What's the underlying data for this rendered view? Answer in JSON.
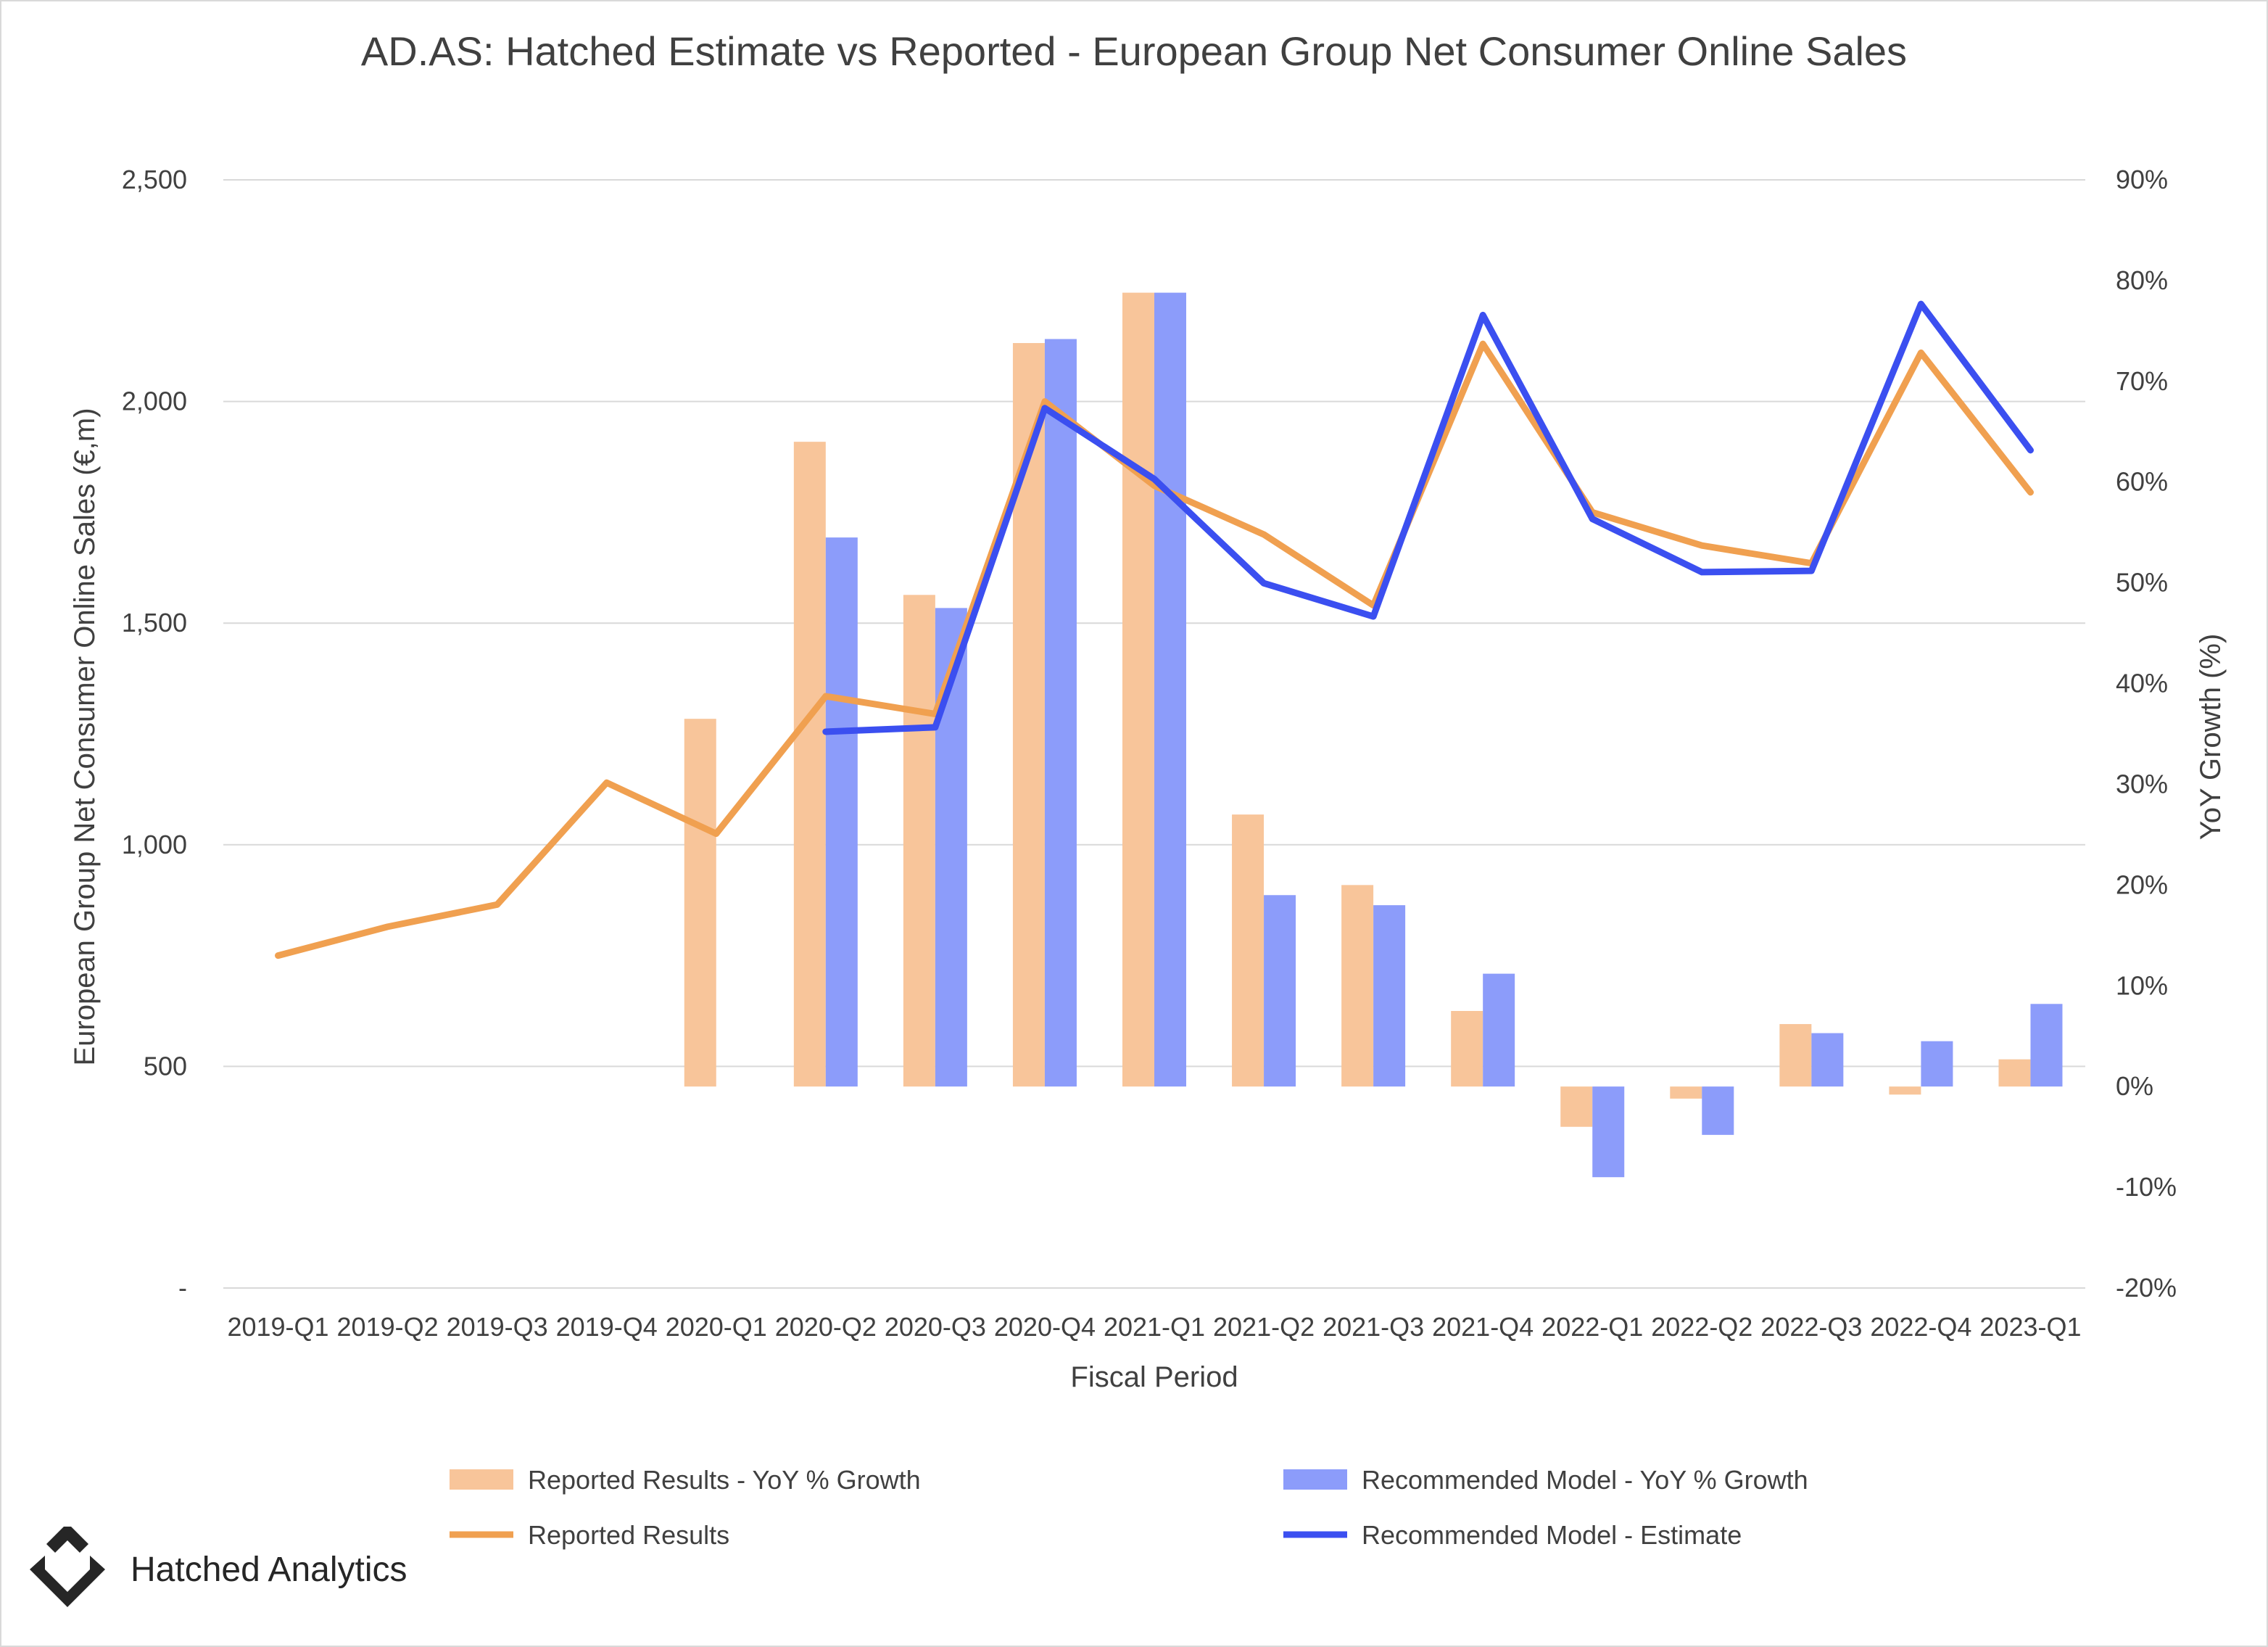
{
  "chart_data": {
    "type": "bar",
    "title": "AD.AS: Hatched Estimate vs Reported - European Group Net Consumer Online Sales",
    "xlabel": "Fiscal Period",
    "ylabel": "European Group Net Consumer Online Sales (€,m)",
    "y2label": "YoY Growth (%)",
    "categories": [
      "2019-Q1",
      "2019-Q2",
      "2019-Q3",
      "2019-Q4",
      "2020-Q1",
      "2020-Q2",
      "2020-Q3",
      "2020-Q4",
      "2021-Q1",
      "2021-Q2",
      "2021-Q3",
      "2021-Q4",
      "2022-Q1",
      "2022-Q2",
      "2022-Q3",
      "2022-Q4",
      "2023-Q1"
    ],
    "ylim": [
      0,
      2500
    ],
    "y_ticks": [
      0,
      500,
      1000,
      1500,
      2000,
      2500
    ],
    "y_tick_labels": [
      "-",
      "500",
      "1,000",
      "1,500",
      "2,000",
      "2,500"
    ],
    "y2lim": [
      -20,
      90
    ],
    "y2_ticks": [
      -20,
      -10,
      0,
      10,
      20,
      30,
      40,
      50,
      60,
      70,
      80,
      90
    ],
    "y2_tick_labels": [
      "-20%",
      "-10%",
      "0%",
      "10%",
      "20%",
      "30%",
      "40%",
      "50%",
      "60%",
      "70%",
      "80%",
      "90%"
    ],
    "grid": true,
    "legend_position": "bottom",
    "series": [
      {
        "name": "Reported Results - YoY % Growth",
        "kind": "bar",
        "axis": "right",
        "color": "#f8c59a",
        "values": [
          null,
          null,
          null,
          null,
          36.5,
          64,
          48.8,
          73.8,
          78.8,
          27,
          20,
          7.5,
          -4,
          -1.2,
          6.2,
          -0.8,
          2.7
        ]
      },
      {
        "name": "Recommended Model - YoY % Growth",
        "kind": "bar",
        "axis": "right",
        "color": "#8c9cfa",
        "values": [
          null,
          null,
          null,
          null,
          null,
          54.5,
          47.5,
          74.2,
          78.8,
          19,
          18,
          11.2,
          -9,
          -4.8,
          5.3,
          4.5,
          8.2
        ]
      },
      {
        "name": "Reported Results",
        "kind": "line",
        "axis": "left",
        "color": "#f0a050",
        "values": [
          750,
          815,
          865,
          1140,
          1025,
          1335,
          1295,
          2000,
          1810,
          1700,
          1540,
          2130,
          1750,
          1675,
          1635,
          2110,
          1795
        ]
      },
      {
        "name": "Recommended Model - Estimate",
        "kind": "line",
        "axis": "left",
        "color": "#3b4ff0",
        "values": [
          null,
          null,
          null,
          null,
          null,
          1255,
          1265,
          1985,
          1825,
          1590,
          1515,
          2195,
          1735,
          1615,
          1618,
          2220,
          1890
        ]
      }
    ]
  },
  "brand": {
    "name": "Hatched Analytics",
    "logo_icon": "diamond-chevron-icon"
  }
}
